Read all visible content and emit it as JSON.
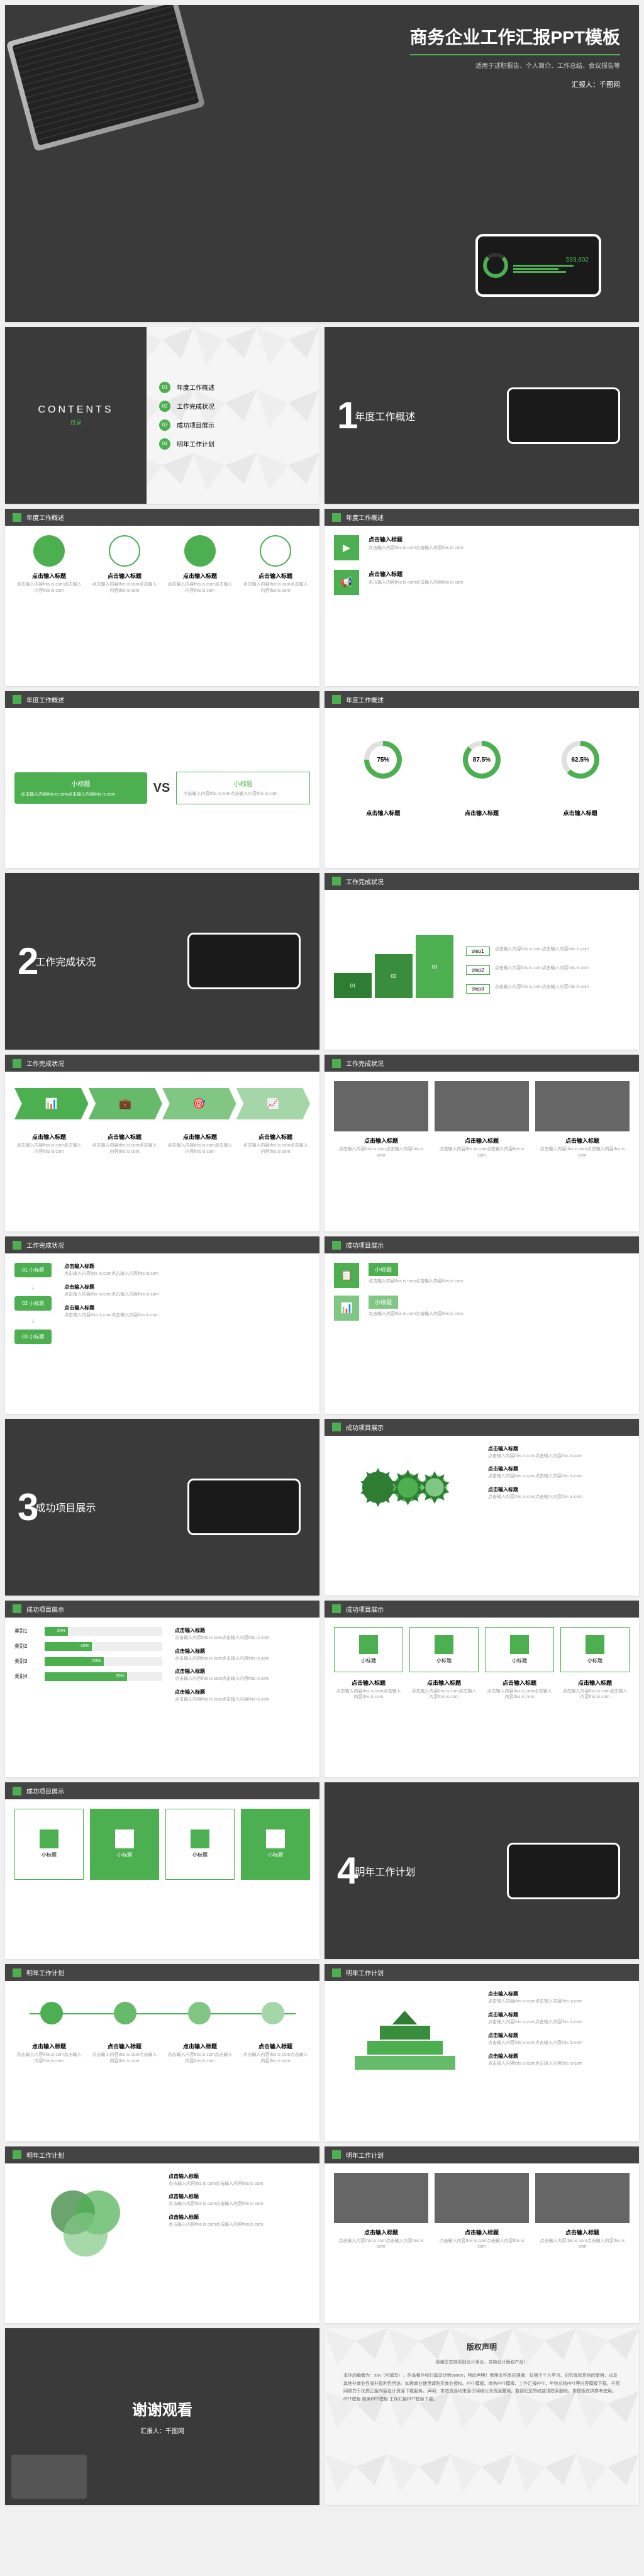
{
  "colors": {
    "accent": "#4caf50",
    "dark": "#3a3a3a",
    "accent_dark": "#2e7d32",
    "text_muted": "#999999"
  },
  "hero": {
    "title": "商务企业工作汇报PPT模板",
    "subtitle": "适用于述职报告、个人简介、工作总结、会议报告等",
    "author": "汇报人：千图网",
    "phone_stat": "593,602"
  },
  "contents": {
    "title": "CONTENTS",
    "subtitle": "目录",
    "items": [
      {
        "num": "01",
        "label": "年度工作概述"
      },
      {
        "num": "02",
        "label": "工作完成状况"
      },
      {
        "num": "03",
        "label": "成功项目展示"
      },
      {
        "num": "04",
        "label": "明年工作计划"
      }
    ]
  },
  "sections": [
    {
      "num": "1",
      "title": "年度工作概述"
    },
    {
      "num": "2",
      "title": "工作完成状况"
    },
    {
      "num": "3",
      "title": "成功项目展示"
    },
    {
      "num": "4",
      "title": "明年工作计划"
    }
  ],
  "slide_titles": {
    "s1": "年度工作概述",
    "s2": "工作完成状况",
    "s3": "成功项目展示",
    "s4": "明年工作计划"
  },
  "placeholder": {
    "title": "点击输入标题",
    "text": "点击输入内容this is com点击输入内容this is com"
  },
  "vs": {
    "left_title": "小标题",
    "right_title": "小标题",
    "label": "VS"
  },
  "donuts": [
    {
      "pct": "75%",
      "cls": "d75"
    },
    {
      "pct": "87.5%",
      "cls": "d87"
    },
    {
      "pct": "62.5%",
      "cls": "d62"
    }
  ],
  "steps": {
    "nums": [
      "01",
      "02",
      "03"
    ],
    "labels": [
      "step1",
      "step2",
      "step3"
    ]
  },
  "flow": {
    "items": [
      "01 小标题",
      "02 小标题",
      "03 小标题"
    ],
    "sub": "小标题"
  },
  "bars": [
    {
      "label": "类别1",
      "pct": 20,
      "txt": "20%"
    },
    {
      "label": "类别2",
      "pct": 40,
      "txt": "40%"
    },
    {
      "label": "类别3",
      "pct": 50,
      "txt": "50%"
    },
    {
      "label": "类别4",
      "pct": 70,
      "txt": "70%"
    }
  ],
  "box_label": "小标题",
  "thanks": {
    "title": "谢谢观看",
    "author": "汇报人：千图网"
  },
  "copyright": {
    "title": "版权声明",
    "intro": "感谢您支持原创设计事业，支持设计版权产品！",
    "body": "本作品编者为：xxx（可填写）​，作品著作权归属设计师owner，特此声明！使用本作品应遵循：仅限于个人学习、研究或欣赏目的使用，以及其他非商业性或非盈利性用途。如需商业使用请购买商业授权。PPT模板、商务PPT模板、工作汇报PPT、年终总结PPT等内容模板下载。千图网致力于优质正版内容设计资源下载服务。声明：本站资源均来源于网络公开资源整理，若侵犯您的权益请联系删除。本模板仅供参考使用。PPT模板 商务PPT模板 工作汇报PPT模板下载。"
  }
}
